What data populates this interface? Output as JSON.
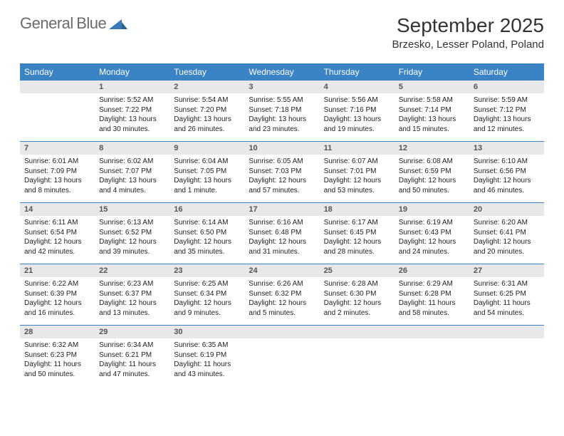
{
  "brand": {
    "word1": "General",
    "word2": "Blue"
  },
  "title": "September 2025",
  "location": "Brzesko, Lesser Poland, Poland",
  "colors": {
    "header_bg": "#3a83c5",
    "header_text": "#ffffff",
    "daynum_bg": "#e8e8e8",
    "daynum_text": "#555555",
    "body_text": "#222222",
    "rule": "#3a83c5",
    "logo_gray": "#6b6b6b",
    "logo_blue": "#3a7ab8"
  },
  "typography": {
    "title_fontsize": 28,
    "location_fontsize": 15,
    "dayhead_fontsize": 12,
    "daynum_fontsize": 11,
    "body_fontsize": 10
  },
  "dayNames": [
    "Sunday",
    "Monday",
    "Tuesday",
    "Wednesday",
    "Thursday",
    "Friday",
    "Saturday"
  ],
  "weeks": [
    [
      {
        "n": "",
        "lines": []
      },
      {
        "n": "1",
        "lines": [
          "Sunrise: 5:52 AM",
          "Sunset: 7:22 PM",
          "Daylight: 13 hours",
          "and 30 minutes."
        ]
      },
      {
        "n": "2",
        "lines": [
          "Sunrise: 5:54 AM",
          "Sunset: 7:20 PM",
          "Daylight: 13 hours",
          "and 26 minutes."
        ]
      },
      {
        "n": "3",
        "lines": [
          "Sunrise: 5:55 AM",
          "Sunset: 7:18 PM",
          "Daylight: 13 hours",
          "and 23 minutes."
        ]
      },
      {
        "n": "4",
        "lines": [
          "Sunrise: 5:56 AM",
          "Sunset: 7:16 PM",
          "Daylight: 13 hours",
          "and 19 minutes."
        ]
      },
      {
        "n": "5",
        "lines": [
          "Sunrise: 5:58 AM",
          "Sunset: 7:14 PM",
          "Daylight: 13 hours",
          "and 15 minutes."
        ]
      },
      {
        "n": "6",
        "lines": [
          "Sunrise: 5:59 AM",
          "Sunset: 7:12 PM",
          "Daylight: 13 hours",
          "and 12 minutes."
        ]
      }
    ],
    [
      {
        "n": "7",
        "lines": [
          "Sunrise: 6:01 AM",
          "Sunset: 7:09 PM",
          "Daylight: 13 hours",
          "and 8 minutes."
        ]
      },
      {
        "n": "8",
        "lines": [
          "Sunrise: 6:02 AM",
          "Sunset: 7:07 PM",
          "Daylight: 13 hours",
          "and 4 minutes."
        ]
      },
      {
        "n": "9",
        "lines": [
          "Sunrise: 6:04 AM",
          "Sunset: 7:05 PM",
          "Daylight: 13 hours",
          "and 1 minute."
        ]
      },
      {
        "n": "10",
        "lines": [
          "Sunrise: 6:05 AM",
          "Sunset: 7:03 PM",
          "Daylight: 12 hours",
          "and 57 minutes."
        ]
      },
      {
        "n": "11",
        "lines": [
          "Sunrise: 6:07 AM",
          "Sunset: 7:01 PM",
          "Daylight: 12 hours",
          "and 53 minutes."
        ]
      },
      {
        "n": "12",
        "lines": [
          "Sunrise: 6:08 AM",
          "Sunset: 6:59 PM",
          "Daylight: 12 hours",
          "and 50 minutes."
        ]
      },
      {
        "n": "13",
        "lines": [
          "Sunrise: 6:10 AM",
          "Sunset: 6:56 PM",
          "Daylight: 12 hours",
          "and 46 minutes."
        ]
      }
    ],
    [
      {
        "n": "14",
        "lines": [
          "Sunrise: 6:11 AM",
          "Sunset: 6:54 PM",
          "Daylight: 12 hours",
          "and 42 minutes."
        ]
      },
      {
        "n": "15",
        "lines": [
          "Sunrise: 6:13 AM",
          "Sunset: 6:52 PM",
          "Daylight: 12 hours",
          "and 39 minutes."
        ]
      },
      {
        "n": "16",
        "lines": [
          "Sunrise: 6:14 AM",
          "Sunset: 6:50 PM",
          "Daylight: 12 hours",
          "and 35 minutes."
        ]
      },
      {
        "n": "17",
        "lines": [
          "Sunrise: 6:16 AM",
          "Sunset: 6:48 PM",
          "Daylight: 12 hours",
          "and 31 minutes."
        ]
      },
      {
        "n": "18",
        "lines": [
          "Sunrise: 6:17 AM",
          "Sunset: 6:45 PM",
          "Daylight: 12 hours",
          "and 28 minutes."
        ]
      },
      {
        "n": "19",
        "lines": [
          "Sunrise: 6:19 AM",
          "Sunset: 6:43 PM",
          "Daylight: 12 hours",
          "and 24 minutes."
        ]
      },
      {
        "n": "20",
        "lines": [
          "Sunrise: 6:20 AM",
          "Sunset: 6:41 PM",
          "Daylight: 12 hours",
          "and 20 minutes."
        ]
      }
    ],
    [
      {
        "n": "21",
        "lines": [
          "Sunrise: 6:22 AM",
          "Sunset: 6:39 PM",
          "Daylight: 12 hours",
          "and 16 minutes."
        ]
      },
      {
        "n": "22",
        "lines": [
          "Sunrise: 6:23 AM",
          "Sunset: 6:37 PM",
          "Daylight: 12 hours",
          "and 13 minutes."
        ]
      },
      {
        "n": "23",
        "lines": [
          "Sunrise: 6:25 AM",
          "Sunset: 6:34 PM",
          "Daylight: 12 hours",
          "and 9 minutes."
        ]
      },
      {
        "n": "24",
        "lines": [
          "Sunrise: 6:26 AM",
          "Sunset: 6:32 PM",
          "Daylight: 12 hours",
          "and 5 minutes."
        ]
      },
      {
        "n": "25",
        "lines": [
          "Sunrise: 6:28 AM",
          "Sunset: 6:30 PM",
          "Daylight: 12 hours",
          "and 2 minutes."
        ]
      },
      {
        "n": "26",
        "lines": [
          "Sunrise: 6:29 AM",
          "Sunset: 6:28 PM",
          "Daylight: 11 hours",
          "and 58 minutes."
        ]
      },
      {
        "n": "27",
        "lines": [
          "Sunrise: 6:31 AM",
          "Sunset: 6:25 PM",
          "Daylight: 11 hours",
          "and 54 minutes."
        ]
      }
    ],
    [
      {
        "n": "28",
        "lines": [
          "Sunrise: 6:32 AM",
          "Sunset: 6:23 PM",
          "Daylight: 11 hours",
          "and 50 minutes."
        ]
      },
      {
        "n": "29",
        "lines": [
          "Sunrise: 6:34 AM",
          "Sunset: 6:21 PM",
          "Daylight: 11 hours",
          "and 47 minutes."
        ]
      },
      {
        "n": "30",
        "lines": [
          "Sunrise: 6:35 AM",
          "Sunset: 6:19 PM",
          "Daylight: 11 hours",
          "and 43 minutes."
        ]
      },
      {
        "n": "",
        "lines": []
      },
      {
        "n": "",
        "lines": []
      },
      {
        "n": "",
        "lines": []
      },
      {
        "n": "",
        "lines": []
      }
    ]
  ]
}
